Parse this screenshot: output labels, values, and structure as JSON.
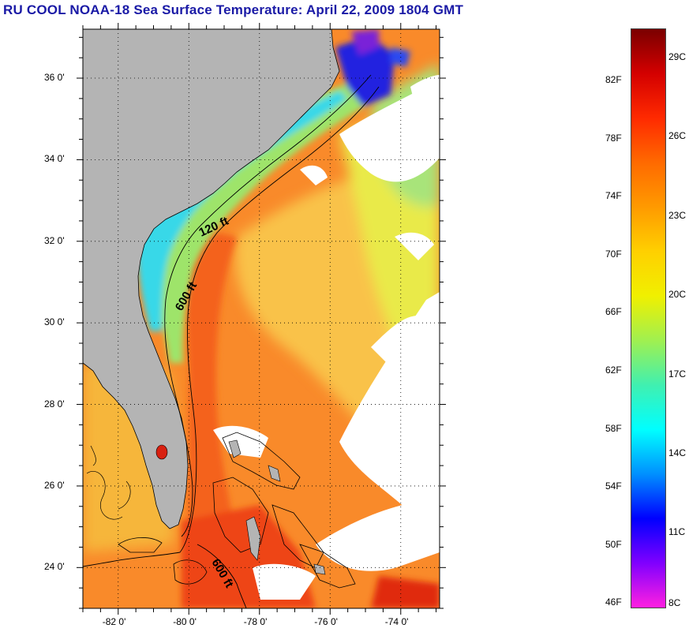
{
  "title": "RU COOL  NOAA-18  Sea Surface Temperature:  April 22, 2009 1804 GMT",
  "map": {
    "lat_labels": [
      "36 0'",
      "34 0'",
      "32 0'",
      "30 0'",
      "28 0'",
      "26 0'",
      "24 0'"
    ],
    "lat_values": [
      36,
      34,
      32,
      30,
      28,
      26,
      24
    ],
    "lon_labels": [
      "-82 0'",
      "-80 0'",
      "-78 0'",
      "-76 0'",
      "-74 0'"
    ],
    "lon_values": [
      -82,
      -80,
      -78,
      -76,
      -74
    ],
    "lat_range": [
      23.0,
      37.2
    ],
    "lon_range": [
      -83.0,
      -72.9
    ],
    "contour_labels": [
      "120 ft",
      "600 ft",
      "600 ft"
    ],
    "colors": {
      "land": "#b4b4b4",
      "gulf_stream": "#f56a1a",
      "warm_interior": "#f9a93a",
      "shelf_cool": "#3fd8e6",
      "shelf_mid": "#8ee07a",
      "north_cold": "#2a2ae8",
      "cloud": "#ffffff"
    }
  },
  "colorbar": {
    "fahrenheit": [
      "82F",
      "78F",
      "74F",
      "70F",
      "66F",
      "62F",
      "58F",
      "54F",
      "50F",
      "46F"
    ],
    "celsius": [
      "29C",
      "26C",
      "23C",
      "20C",
      "17C",
      "14C",
      "11C",
      "8C"
    ],
    "gradient_colors": [
      "#7a0000",
      "#d40000",
      "#ff2a00",
      "#ff6a00",
      "#ff9a00",
      "#ffd000",
      "#f0f000",
      "#a0f050",
      "#40f0b0",
      "#00ffff",
      "#0090ff",
      "#0000ff",
      "#8000ff",
      "#ff20e0"
    ]
  }
}
